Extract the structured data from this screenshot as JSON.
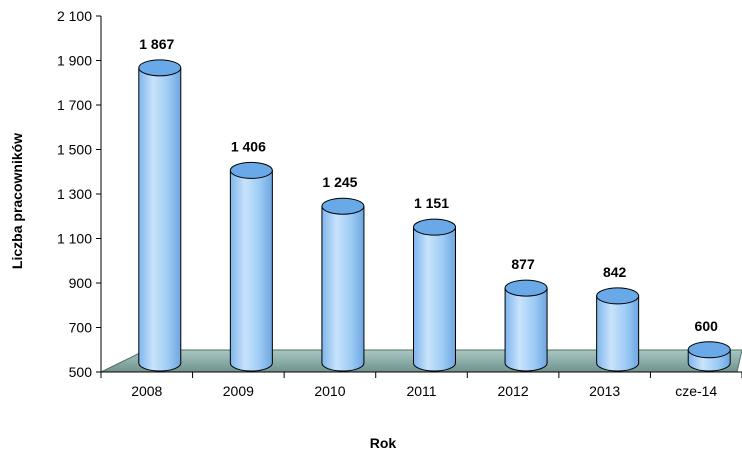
{
  "chart_data": {
    "type": "bar",
    "style": "3d-cylinder",
    "categories": [
      "2008",
      "2009",
      "2010",
      "2011",
      "2012",
      "2013",
      "cze-14"
    ],
    "values": [
      1867,
      1406,
      1245,
      1151,
      877,
      842,
      600
    ],
    "data_labels": [
      "1 867",
      "1 406",
      "1 245",
      "1 151",
      "877",
      "842",
      "600"
    ],
    "y_ticks": [
      500,
      700,
      900,
      1100,
      1300,
      1500,
      1700,
      1900,
      2100
    ],
    "y_tick_labels": [
      "500",
      "700",
      "900",
      "1 100",
      "1 300",
      "1 500",
      "1 700",
      "1 900",
      "2 100"
    ],
    "ylim": [
      500,
      2100
    ],
    "xlabel": "Rok",
    "ylabel": "Liczba pracowników",
    "grid": false,
    "legend": "none",
    "colors": {
      "bar_body": "#9ccbf5",
      "bar_top": "#6aa9e8",
      "bar_edge": "#000000",
      "floor": "#8fb3ad",
      "floor_dark": "#5f8580"
    }
  }
}
